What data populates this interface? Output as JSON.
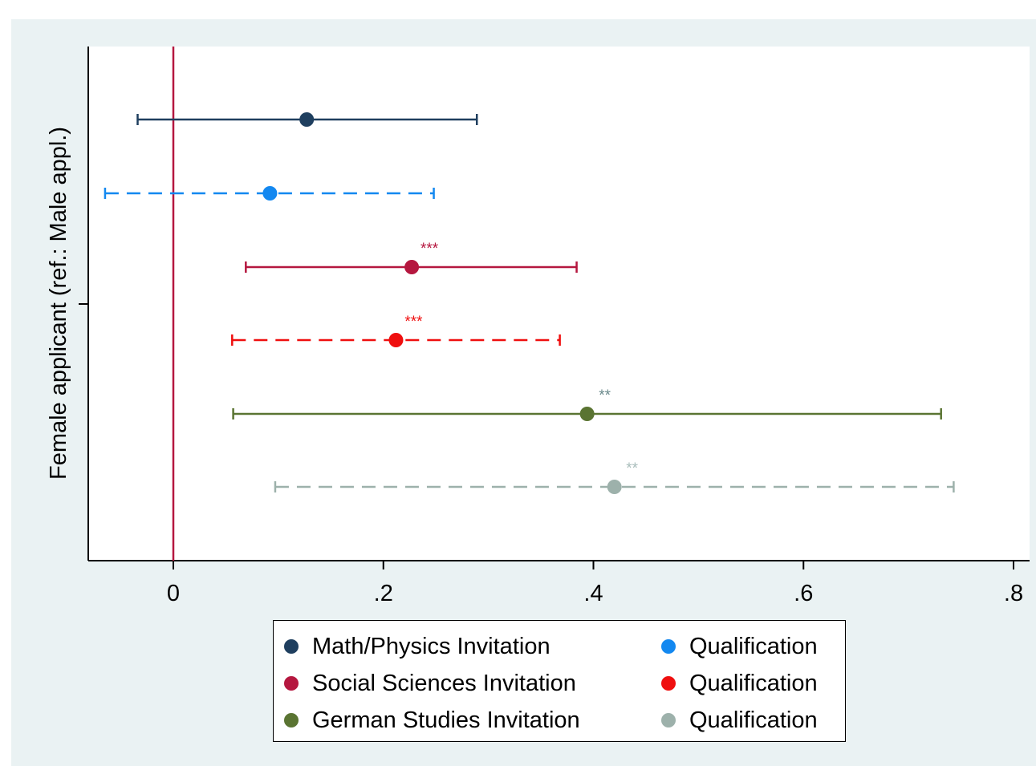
{
  "chart_data": {
    "type": "scatter",
    "subtype": "coefficient-plot-with-confidence-intervals",
    "title": "",
    "xlabel": "",
    "ylabel": "Female applicant (ref.: Male appl.)",
    "xlim": [
      -0.08,
      0.81
    ],
    "x_ticks": [
      0,
      0.2,
      0.4,
      0.6,
      0.8
    ],
    "x_tick_labels": [
      "0",
      ".2",
      ".4",
      ".6",
      ".8"
    ],
    "reference_line_x": 0,
    "reference_line_color": "#b5173f",
    "grid": false,
    "legend_position": "bottom",
    "series": [
      {
        "name": "Math/Physics Invitation",
        "estimate": 0.127,
        "ci": [
          -0.034,
          0.289
        ],
        "color": "#1f3f5f",
        "dashed": false,
        "stars": ""
      },
      {
        "name": "Qualification",
        "estimate": 0.092,
        "ci": [
          -0.065,
          0.248
        ],
        "color": "#1388f0",
        "dashed": true,
        "stars": ""
      },
      {
        "name": "Social Sciences Invitation",
        "estimate": 0.227,
        "ci": [
          0.069,
          0.384
        ],
        "color": "#b5173f",
        "dashed": false,
        "stars": "***"
      },
      {
        "name": "Qualification",
        "estimate": 0.212,
        "ci": [
          0.056,
          0.368
        ],
        "color": "#ef0f0f",
        "dashed": true,
        "stars": "***"
      },
      {
        "name": "German Studies Invitation",
        "estimate": 0.394,
        "ci": [
          0.057,
          0.731
        ],
        "color": "#5a7432",
        "dashed": false,
        "stars": "**"
      },
      {
        "name": "Qualification",
        "estimate": 0.42,
        "ci": [
          0.097,
          0.743
        ],
        "color": "#9db1ab",
        "dashed": true,
        "stars": "**"
      }
    ],
    "star_colors": [
      "",
      "",
      "#b5173f",
      "#ef0f0f",
      "#6b8a8c",
      "#a9bdbb"
    ]
  },
  "legend": {
    "items": [
      {
        "label": "Math/Physics Invitation",
        "color": "#1f3f5f"
      },
      {
        "label": "Qualification",
        "color": "#1388f0"
      },
      {
        "label": "Social Sciences Invitation",
        "color": "#b5173f"
      },
      {
        "label": "Qualification",
        "color": "#ef0f0f"
      },
      {
        "label": "German Studies Invitation",
        "color": "#5a7432"
      },
      {
        "label": "Qualification",
        "color": "#9db1ab"
      }
    ]
  }
}
